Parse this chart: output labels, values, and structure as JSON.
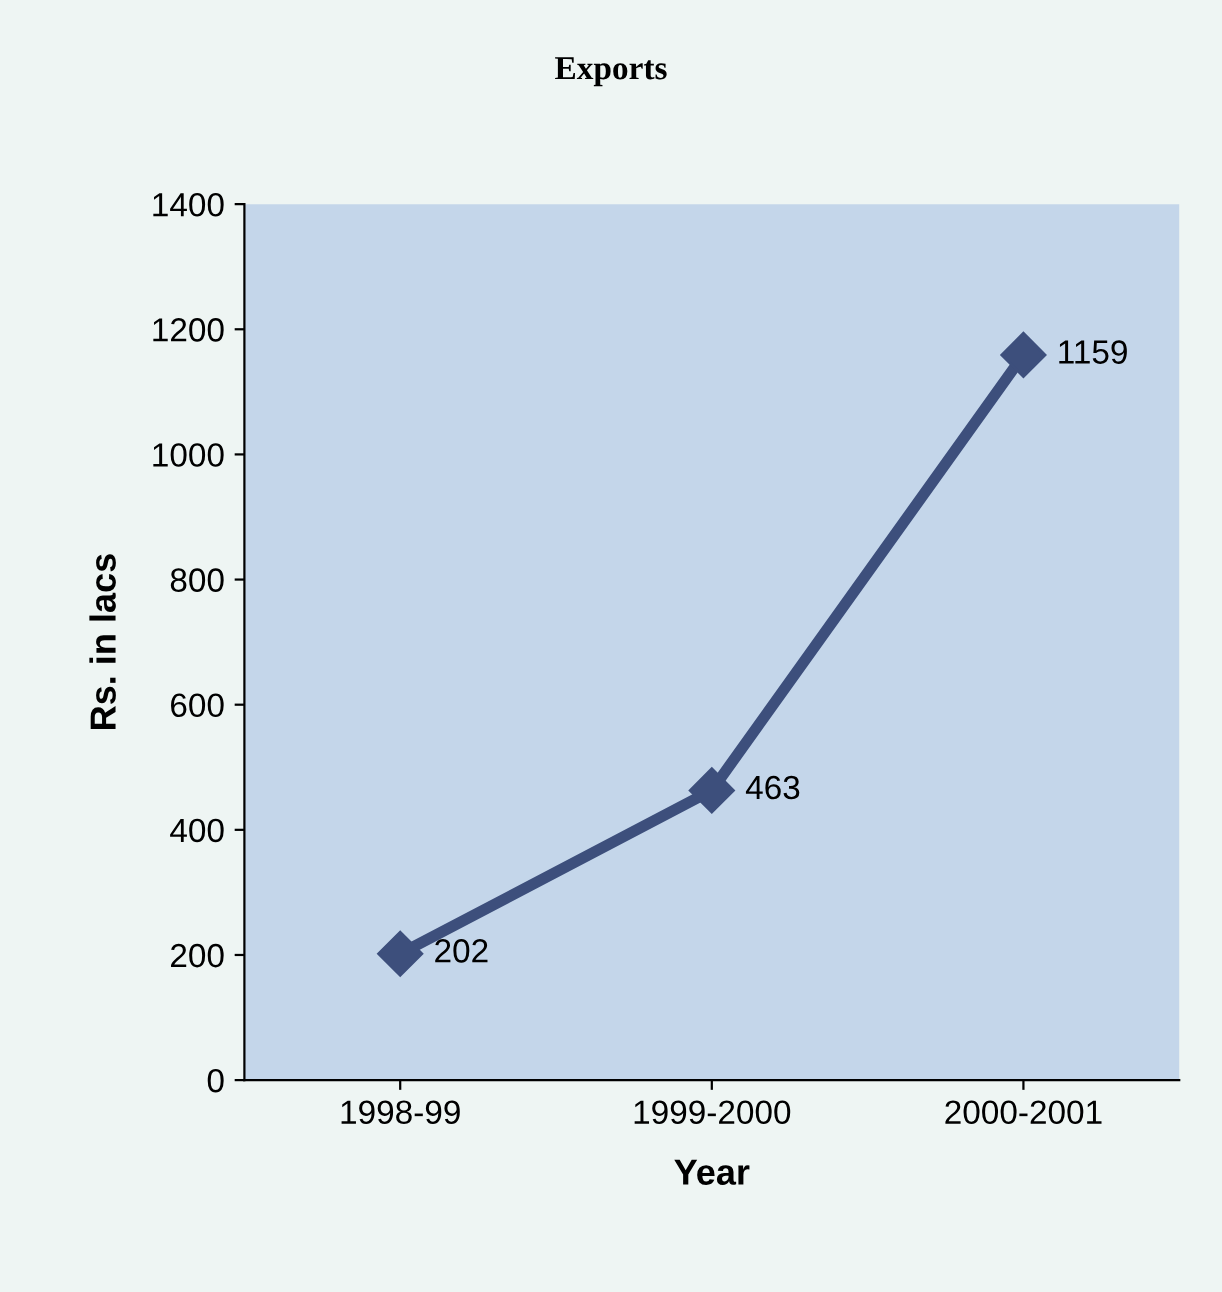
{
  "chart_data": {
    "type": "line",
    "title": "Exports",
    "xlabel": "Year",
    "ylabel": "Rs. in lacs",
    "categories": [
      "1998-99",
      "1999-2000",
      "2000-2001"
    ],
    "series": [
      {
        "color": "#3d4f7c",
        "values": [
          202,
          463,
          1159
        ]
      }
    ],
    "ylim": [
      0,
      1400
    ],
    "yticks": [
      0,
      200,
      400,
      600,
      800,
      1000,
      1200,
      1400
    ],
    "marker": "diamond",
    "line_style": "solid",
    "data_labels": true,
    "grid": false,
    "legend": false
  }
}
